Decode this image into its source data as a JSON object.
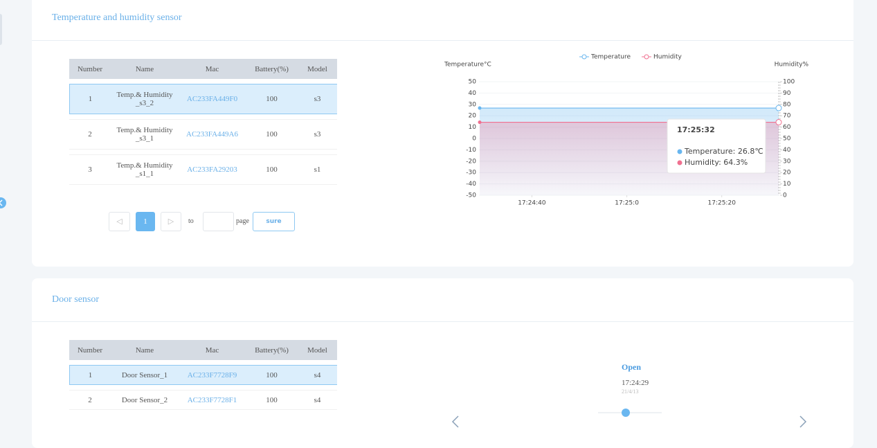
{
  "temp_panel": {
    "title": "Temperature and humidity sensor",
    "table": {
      "columns": [
        "Number",
        "Name",
        "Mac",
        "Battery(%)",
        "Model"
      ],
      "rows": [
        [
          1,
          "Temp.& Humidity _s3_2",
          "AC233FA449F0",
          100,
          "s3"
        ],
        [
          2,
          "Temp.& Humidity _s3_1",
          "AC233FA449A6",
          100,
          "s3"
        ],
        [
          3,
          "Temp.& Humidity _s1_1",
          "AC233FA29203",
          100,
          "s1"
        ]
      ]
    },
    "pagination": {
      "current": 1,
      "to": "to",
      "page": "page",
      "button": "sure"
    }
  },
  "chart_data": {
    "type": "line",
    "ylabel": "Temperature°C",
    "y2label": "Humidity%",
    "x": [
      "17:24:29",
      "17:25:32"
    ],
    "xlim": [
      "17:24:29",
      "17:25:32"
    ],
    "xticks": [
      "17:24:40",
      "17:25:0",
      "17:25:20"
    ],
    "ylim": [
      -50,
      50
    ],
    "yticks": [
      -50,
      -40,
      -30,
      -20,
      -10,
      0,
      10,
      20,
      30,
      40,
      50
    ],
    "y2lim": [
      0,
      100
    ],
    "y2ticks": [
      0,
      10,
      20,
      30,
      40,
      50,
      60,
      70,
      80,
      90,
      100
    ],
    "grid": true,
    "series": [
      {
        "name": "Temperature",
        "color": "#68b6ef",
        "values": [
          26.8,
          26.8
        ]
      },
      {
        "name": "Humidity",
        "color": "#f07090",
        "values": [
          64.3,
          64.3
        ],
        "axis": "y2"
      }
    ],
    "tooltip": {
      "title": "17:25:32",
      "items": [
        "Temperature: 26.8℃",
        "Humidity: 64.3%"
      ]
    }
  },
  "door_panel": {
    "title": "Door sensor",
    "table": {
      "columns": [
        "Number",
        "Name",
        "Mac",
        "Battery(%)",
        "Model"
      ],
      "rows": [
        [
          1,
          "Door Sensor_1",
          "AC233F7728F9",
          100,
          "s4"
        ],
        [
          2,
          "Door Sensor_2",
          "AC233F7728F1",
          100,
          "s4"
        ]
      ]
    },
    "status": {
      "state": "Open",
      "time": "17:24:29",
      "date": "21/4/13"
    }
  }
}
